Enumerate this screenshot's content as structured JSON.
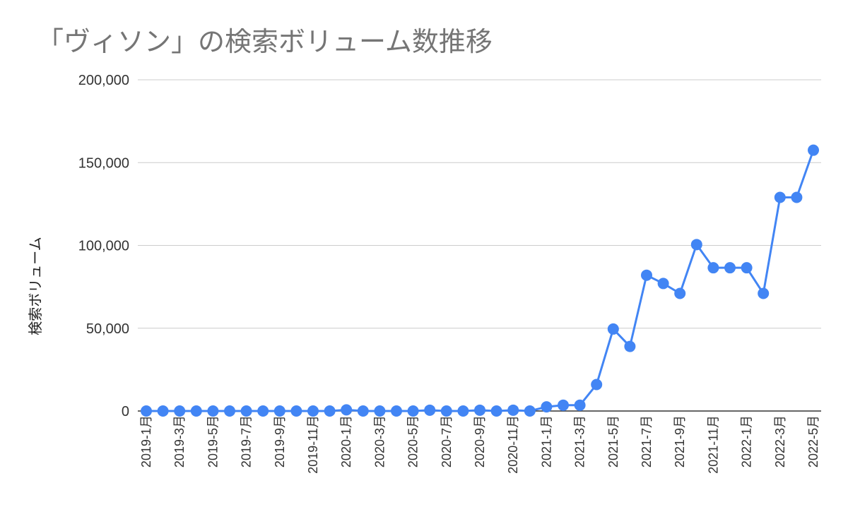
{
  "title": "「ヴィソン」の検索ボリューム数推移",
  "colors": {
    "series": "#4285f4",
    "grid": "#cccccc",
    "axis": "#333333",
    "title": "#757575"
  },
  "chart_data": {
    "type": "line",
    "title": "「ヴィソン」の検索ボリューム数推移",
    "xlabel": "",
    "ylabel": "検索ボリューム",
    "ylim": [
      0,
      200000
    ],
    "yticks": [
      0,
      50000,
      100000,
      150000,
      200000
    ],
    "ytick_labels": [
      "0",
      "50,000",
      "100,000",
      "150,000",
      "200,000"
    ],
    "grid": true,
    "legend": "none",
    "categories": [
      "2019-1月",
      "2019-2月",
      "2019-3月",
      "2019-4月",
      "2019-5月",
      "2019-6月",
      "2019-7月",
      "2019-8月",
      "2019-9月",
      "2019-10月",
      "2019-11月",
      "2019-12月",
      "2020-1月",
      "2020-2月",
      "2020-3月",
      "2020-4月",
      "2020-5月",
      "2020-6月",
      "2020-7月",
      "2020-8月",
      "2020-9月",
      "2020-10月",
      "2020-11月",
      "2020-12月",
      "2021-1月",
      "2021-2月",
      "2021-3月",
      "2021-4月",
      "2021-5月",
      "2021-6月",
      "2021-7月",
      "2021-8月",
      "2021-9月",
      "2021-10月",
      "2021-11月",
      "2021-12月",
      "2022-1月",
      "2022-2月",
      "2022-3月",
      "2022-4月",
      "2022-5月"
    ],
    "tick_labels_shown": [
      "2019-1月",
      "2019-3月",
      "2019-5月",
      "2019-7月",
      "2019-9月",
      "2019-11月",
      "2020-1月",
      "2020-3月",
      "2020-5月",
      "2020-7月",
      "2020-9月",
      "2020-11月",
      "2021-1月",
      "2021-3月",
      "2021-5月",
      "2021-7月",
      "2021-9月",
      "2021-11月",
      "2022-1月",
      "2022-3月",
      "2022-5月"
    ],
    "series": [
      {
        "values": [
          0,
          0,
          0,
          0,
          0,
          0,
          0,
          0,
          0,
          0,
          0,
          0,
          700,
          0,
          0,
          0,
          0,
          500,
          0,
          0,
          500,
          0,
          500,
          0,
          2500,
          3500,
          3500,
          16000,
          49500,
          39000,
          82000,
          77000,
          71000,
          100500,
          86500,
          86500,
          86500,
          71000,
          129000,
          129000,
          157500
        ]
      }
    ]
  }
}
